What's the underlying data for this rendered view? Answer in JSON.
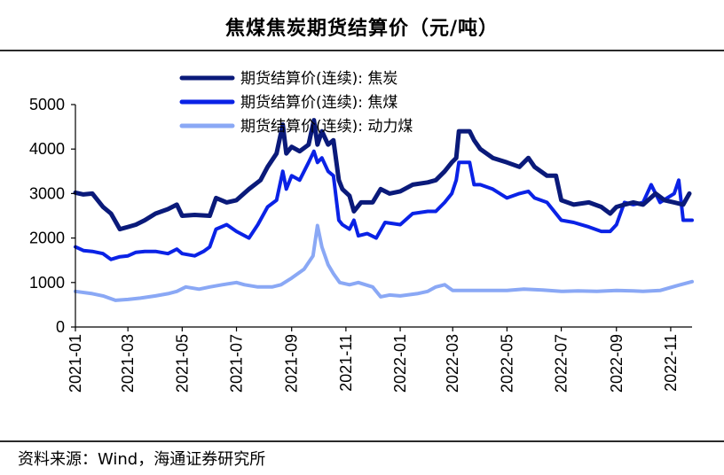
{
  "page": {
    "title": "焦煤焦炭期货结算价（元/吨）",
    "source": "资料来源：Wind，海通证券研究所"
  },
  "chart_data": {
    "type": "line",
    "title": "焦煤焦炭期货结算价（元/吨）",
    "xlabel": "",
    "ylabel": "",
    "ylim": [
      0,
      5000
    ],
    "yticks": [
      0,
      1000,
      2000,
      3000,
      4000,
      5000
    ],
    "xlim": [
      "2021-01-01",
      "2022-11-25"
    ],
    "xticks": [
      "2021-01",
      "2021-03",
      "2021-05",
      "2021-07",
      "2021-09",
      "2021-11",
      "2022-01",
      "2022-03",
      "2022-05",
      "2022-07",
      "2022-09",
      "2022-11"
    ],
    "grid": false,
    "legend_position": "top-left",
    "series": [
      {
        "name": "期货结算价(连续): 焦炭",
        "color": "#0a1a7a",
        "points": [
          [
            "2021-01-01",
            3020
          ],
          [
            "2021-01-10",
            2980
          ],
          [
            "2021-01-20",
            3000
          ],
          [
            "2021-02-01",
            2700
          ],
          [
            "2021-02-10",
            2550
          ],
          [
            "2021-02-20",
            2200
          ],
          [
            "2021-03-01",
            2250
          ],
          [
            "2021-03-10",
            2300
          ],
          [
            "2021-03-20",
            2400
          ],
          [
            "2021-04-01",
            2550
          ],
          [
            "2021-04-15",
            2650
          ],
          [
            "2021-04-25",
            2750
          ],
          [
            "2021-05-01",
            2500
          ],
          [
            "2021-05-15",
            2520
          ],
          [
            "2021-06-01",
            2500
          ],
          [
            "2021-06-08",
            2900
          ],
          [
            "2021-06-20",
            2800
          ],
          [
            "2021-07-01",
            2850
          ],
          [
            "2021-07-15",
            3100
          ],
          [
            "2021-07-28",
            3300
          ],
          [
            "2021-08-05",
            3600
          ],
          [
            "2021-08-15",
            3900
          ],
          [
            "2021-08-22",
            4550
          ],
          [
            "2021-08-26",
            3900
          ],
          [
            "2021-09-01",
            4050
          ],
          [
            "2021-09-10",
            3950
          ],
          [
            "2021-09-20",
            4100
          ],
          [
            "2021-09-26",
            4650
          ],
          [
            "2021-09-30",
            4100
          ],
          [
            "2021-10-05",
            4400
          ],
          [
            "2021-10-12",
            4100
          ],
          [
            "2021-10-18",
            4200
          ],
          [
            "2021-10-24",
            3300
          ],
          [
            "2021-10-28",
            3100
          ],
          [
            "2021-11-05",
            2950
          ],
          [
            "2021-11-10",
            2600
          ],
          [
            "2021-11-18",
            2800
          ],
          [
            "2021-12-01",
            2800
          ],
          [
            "2021-12-10",
            3100
          ],
          [
            "2021-12-20",
            3000
          ],
          [
            "2022-01-01",
            3050
          ],
          [
            "2022-01-15",
            3200
          ],
          [
            "2022-02-01",
            3250
          ],
          [
            "2022-02-10",
            3300
          ],
          [
            "2022-02-20",
            3500
          ],
          [
            "2022-02-28",
            3700
          ],
          [
            "2022-03-05",
            3800
          ],
          [
            "2022-03-08",
            4400
          ],
          [
            "2022-03-20",
            4400
          ],
          [
            "2022-03-25",
            4200
          ],
          [
            "2022-04-01",
            4000
          ],
          [
            "2022-04-15",
            3800
          ],
          [
            "2022-05-01",
            3700
          ],
          [
            "2022-05-15",
            3600
          ],
          [
            "2022-05-25",
            3800
          ],
          [
            "2022-06-01",
            3600
          ],
          [
            "2022-06-15",
            3400
          ],
          [
            "2022-06-25",
            3400
          ],
          [
            "2022-07-01",
            2850
          ],
          [
            "2022-07-15",
            2750
          ],
          [
            "2022-08-01",
            2800
          ],
          [
            "2022-08-15",
            2700
          ],
          [
            "2022-08-25",
            2550
          ],
          [
            "2022-09-01",
            2700
          ],
          [
            "2022-09-10",
            2750
          ],
          [
            "2022-09-20",
            2800
          ],
          [
            "2022-10-01",
            2750
          ],
          [
            "2022-10-15",
            3000
          ],
          [
            "2022-10-25",
            2850
          ],
          [
            "2022-11-05",
            2800
          ],
          [
            "2022-11-15",
            2750
          ],
          [
            "2022-11-22",
            3000
          ]
        ]
      },
      {
        "name": "期货结算价(连续): 焦煤",
        "color": "#0a22e6",
        "points": [
          [
            "2021-01-01",
            1800
          ],
          [
            "2021-01-10",
            1720
          ],
          [
            "2021-01-20",
            1700
          ],
          [
            "2021-02-01",
            1650
          ],
          [
            "2021-02-10",
            1520
          ],
          [
            "2021-02-20",
            1580
          ],
          [
            "2021-03-01",
            1600
          ],
          [
            "2021-03-10",
            1680
          ],
          [
            "2021-03-20",
            1700
          ],
          [
            "2021-04-01",
            1700
          ],
          [
            "2021-04-15",
            1650
          ],
          [
            "2021-04-25",
            1750
          ],
          [
            "2021-05-01",
            1650
          ],
          [
            "2021-05-15",
            1600
          ],
          [
            "2021-05-25",
            1700
          ],
          [
            "2021-06-01",
            1800
          ],
          [
            "2021-06-08",
            2200
          ],
          [
            "2021-06-20",
            2300
          ],
          [
            "2021-07-01",
            2150
          ],
          [
            "2021-07-15",
            2000
          ],
          [
            "2021-07-25",
            2300
          ],
          [
            "2021-08-05",
            2700
          ],
          [
            "2021-08-15",
            2850
          ],
          [
            "2021-08-22",
            3500
          ],
          [
            "2021-08-26",
            3100
          ],
          [
            "2021-09-01",
            3400
          ],
          [
            "2021-09-10",
            3300
          ],
          [
            "2021-09-20",
            3700
          ],
          [
            "2021-09-26",
            3950
          ],
          [
            "2021-09-30",
            3700
          ],
          [
            "2021-10-05",
            3800
          ],
          [
            "2021-10-12",
            3500
          ],
          [
            "2021-10-18",
            3400
          ],
          [
            "2021-10-24",
            2400
          ],
          [
            "2021-10-28",
            2300
          ],
          [
            "2021-11-05",
            2200
          ],
          [
            "2021-11-10",
            2400
          ],
          [
            "2021-11-15",
            2050
          ],
          [
            "2021-11-25",
            2100
          ],
          [
            "2021-12-05",
            2000
          ],
          [
            "2021-12-15",
            2350
          ],
          [
            "2022-01-01",
            2300
          ],
          [
            "2022-01-15",
            2550
          ],
          [
            "2022-02-01",
            2600
          ],
          [
            "2022-02-10",
            2600
          ],
          [
            "2022-02-20",
            2800
          ],
          [
            "2022-02-28",
            3000
          ],
          [
            "2022-03-05",
            3300
          ],
          [
            "2022-03-08",
            3700
          ],
          [
            "2022-03-20",
            3700
          ],
          [
            "2022-03-25",
            3200
          ],
          [
            "2022-04-01",
            3200
          ],
          [
            "2022-04-15",
            3100
          ],
          [
            "2022-05-01",
            2900
          ],
          [
            "2022-05-15",
            3000
          ],
          [
            "2022-05-25",
            3050
          ],
          [
            "2022-06-01",
            2900
          ],
          [
            "2022-06-15",
            2800
          ],
          [
            "2022-07-01",
            2400
          ],
          [
            "2022-07-15",
            2350
          ],
          [
            "2022-08-01",
            2250
          ],
          [
            "2022-08-15",
            2150
          ],
          [
            "2022-08-25",
            2150
          ],
          [
            "2022-09-01",
            2300
          ],
          [
            "2022-09-10",
            2800
          ],
          [
            "2022-09-20",
            2750
          ],
          [
            "2022-10-01",
            2800
          ],
          [
            "2022-10-10",
            3200
          ],
          [
            "2022-10-20",
            2800
          ],
          [
            "2022-10-28",
            2900
          ],
          [
            "2022-11-05",
            3000
          ],
          [
            "2022-11-10",
            3300
          ],
          [
            "2022-11-15",
            2400
          ],
          [
            "2022-11-25",
            2400
          ]
        ]
      },
      {
        "name": "期货结算价(连续): 动力煤",
        "color": "#8aa8f5",
        "points": [
          [
            "2021-01-01",
            800
          ],
          [
            "2021-01-20",
            750
          ],
          [
            "2021-02-01",
            700
          ],
          [
            "2021-02-15",
            600
          ],
          [
            "2021-03-01",
            620
          ],
          [
            "2021-03-15",
            650
          ],
          [
            "2021-04-01",
            700
          ],
          [
            "2021-04-15",
            750
          ],
          [
            "2021-04-25",
            800
          ],
          [
            "2021-05-05",
            900
          ],
          [
            "2021-05-20",
            850
          ],
          [
            "2021-06-01",
            900
          ],
          [
            "2021-06-15",
            950
          ],
          [
            "2021-07-01",
            1000
          ],
          [
            "2021-07-10",
            950
          ],
          [
            "2021-07-25",
            900
          ],
          [
            "2021-08-10",
            900
          ],
          [
            "2021-08-20",
            950
          ],
          [
            "2021-09-01",
            1100
          ],
          [
            "2021-09-15",
            1300
          ],
          [
            "2021-09-25",
            1600
          ],
          [
            "2021-09-30",
            2280
          ],
          [
            "2021-10-05",
            1800
          ],
          [
            "2021-10-12",
            1400
          ],
          [
            "2021-10-18",
            1200
          ],
          [
            "2021-10-25",
            1000
          ],
          [
            "2021-11-05",
            950
          ],
          [
            "2021-11-15",
            1000
          ],
          [
            "2021-12-01",
            900
          ],
          [
            "2021-12-10",
            680
          ],
          [
            "2021-12-20",
            720
          ],
          [
            "2022-01-01",
            700
          ],
          [
            "2022-01-20",
            750
          ],
          [
            "2022-02-01",
            800
          ],
          [
            "2022-02-10",
            900
          ],
          [
            "2022-02-20",
            950
          ],
          [
            "2022-03-01",
            820
          ],
          [
            "2022-03-20",
            820
          ],
          [
            "2022-04-10",
            820
          ],
          [
            "2022-05-01",
            820
          ],
          [
            "2022-05-20",
            850
          ],
          [
            "2022-06-10",
            830
          ],
          [
            "2022-07-01",
            800
          ],
          [
            "2022-07-20",
            810
          ],
          [
            "2022-08-10",
            800
          ],
          [
            "2022-09-01",
            820
          ],
          [
            "2022-09-20",
            810
          ],
          [
            "2022-10-01",
            800
          ],
          [
            "2022-10-20",
            820
          ],
          [
            "2022-11-10",
            940
          ],
          [
            "2022-11-25",
            1020
          ]
        ]
      }
    ]
  }
}
